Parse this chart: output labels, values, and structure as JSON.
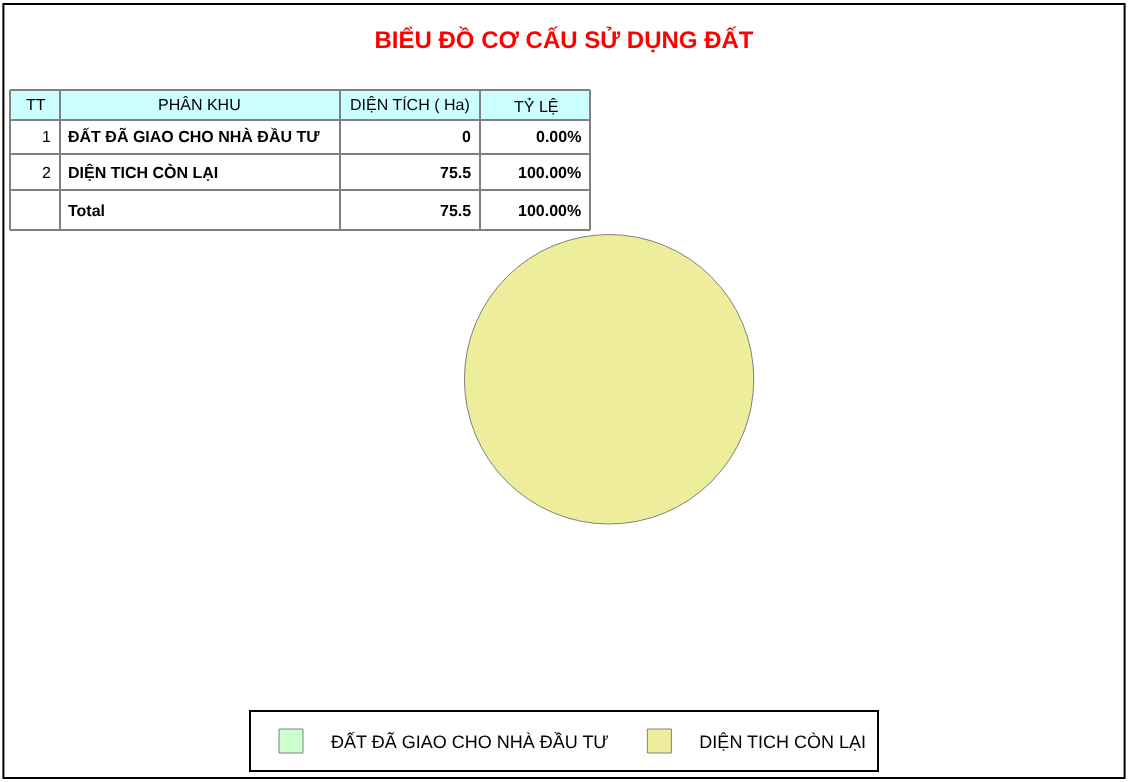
{
  "chart_data": {
    "type": "pie",
    "title": "BIỂU ĐỒ CƠ CẤU SỬ DỤNG ĐẤT",
    "categories": [
      "ĐẤT ĐÃ GIAO CHO NHÀ ĐẦU TƯ",
      "DIỆN TICH CÒN LẠI"
    ],
    "values": [
      0,
      75.5
    ],
    "colors": [
      "#ccffcc",
      "#eded9b"
    ],
    "value_labels": [
      "0",
      "75.5"
    ],
    "legend": "bottom",
    "annotations": [
      "TT",
      "PHÂN KHU",
      "DIỆN TÍCH ( Ha)",
      "TỶ LỆ",
      "1",
      "0.00%",
      "2",
      "100.00%",
      "Total",
      "75.5",
      "100.00%"
    ]
  }
}
